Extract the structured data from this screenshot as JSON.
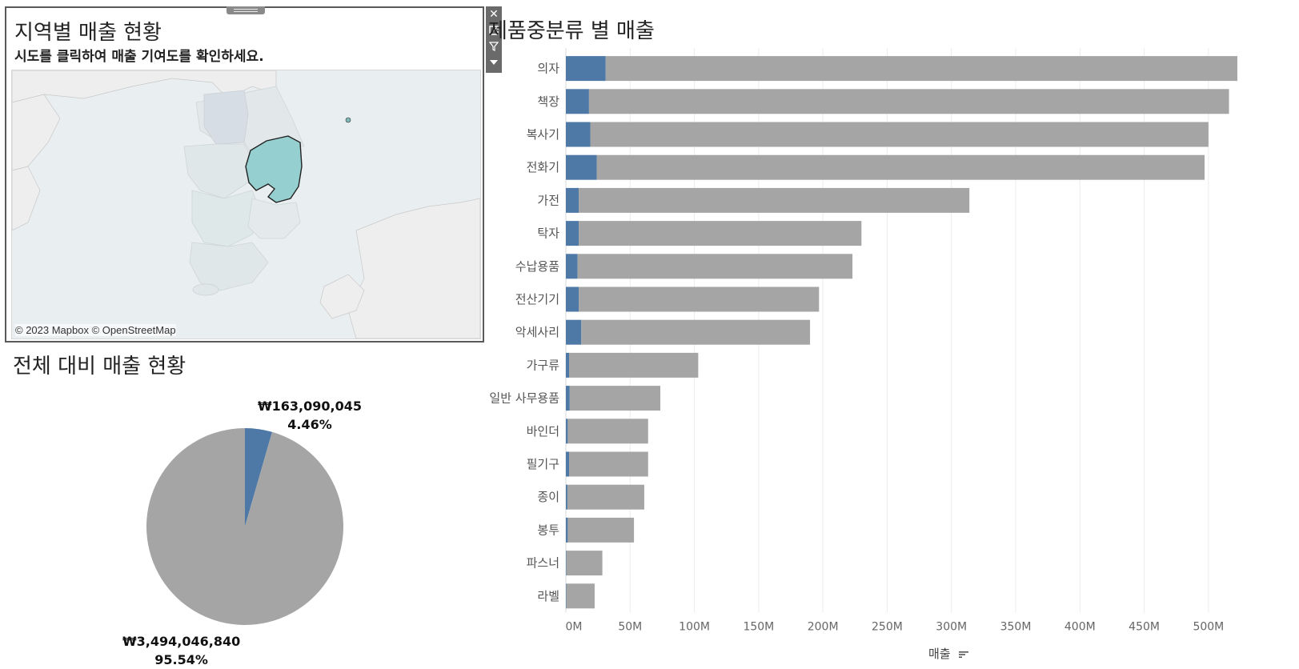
{
  "map_panel": {
    "title": "지역별 매출 현황",
    "subtitle": "시도를 클릭하여 매출 기여도를 확인하세요.",
    "attribution": "© 2023 Mapbox © OpenStreetMap",
    "highlight_color": "#96cfcf",
    "selected_region_note": "highlighted province on map"
  },
  "toolbar": {
    "icons": [
      "close-icon",
      "popout-icon",
      "filter-icon",
      "dropdown-icon"
    ]
  },
  "pie_panel": {
    "title": "전체 대비 매출 현황",
    "selected_amount": "₩163,090,045",
    "selected_pct": "4.46%",
    "rest_amount": "₩3,494,046,840",
    "rest_pct": "95.54%"
  },
  "bar_panel": {
    "title": "제품중분류 별 매출",
    "axis_title": "매출"
  },
  "colors": {
    "selected": "#4e79a7",
    "rest": "#a5a5a5"
  },
  "chart_data": [
    {
      "type": "pie",
      "title": "전체 대비 매출 현황",
      "slices": [
        {
          "label": "₩163,090,045",
          "value": 163090045,
          "percent": 4.46
        },
        {
          "label": "₩3,494,046,840",
          "value": 3494046840,
          "percent": 95.54
        }
      ]
    },
    {
      "type": "bar",
      "orientation": "horizontal",
      "stacked": true,
      "title": "제품중분류 별 매출",
      "xlabel": "매출",
      "xlim": [
        0,
        525
      ],
      "unit": "M",
      "ticks": [
        "0M",
        "50M",
        "100M",
        "150M",
        "200M",
        "250M",
        "300M",
        "350M",
        "400M",
        "450M",
        "500M"
      ],
      "categories": [
        "의자",
        "책장",
        "복사기",
        "전화기",
        "가전",
        "탁자",
        "수납용품",
        "전산기기",
        "악세사리",
        "가구류",
        "일반 사무용품",
        "바인더",
        "필기구",
        "종이",
        "봉투",
        "파스너",
        "라벨"
      ],
      "series": [
        {
          "values": [
            31,
            18,
            19,
            24,
            10,
            10,
            9,
            10,
            12,
            2.5,
            3,
            1.5,
            2.5,
            1.2,
            1.5,
            0.4,
            0.4
          ]
        },
        {
          "values": [
            491.5,
            498,
            481,
            473,
            304,
            220,
            214,
            187,
            178,
            100.5,
            70.5,
            62.5,
            61.5,
            59.8,
            51.5,
            28,
            22
          ]
        }
      ],
      "totals": [
        522.5,
        516,
        500,
        497,
        314,
        230,
        223,
        197,
        190,
        103,
        73.5,
        64,
        64,
        61,
        53,
        28.4,
        22.4
      ],
      "grid": true
    }
  ]
}
